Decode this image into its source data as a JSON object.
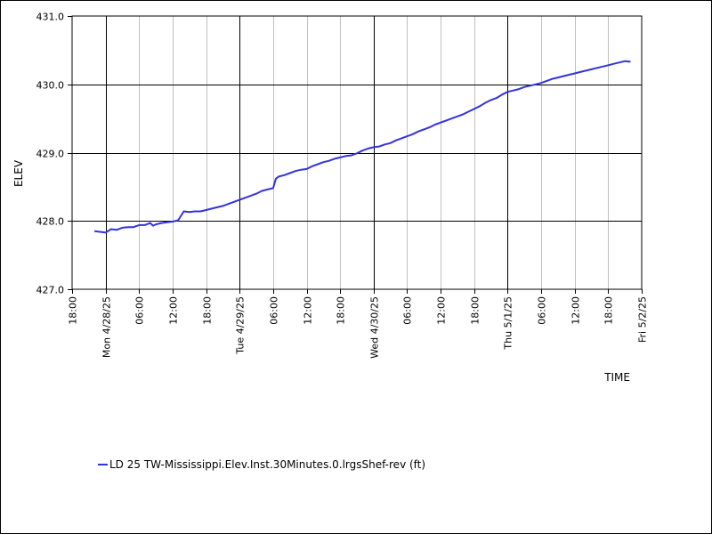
{
  "chart_data": {
    "type": "line",
    "xlabel": "TIME",
    "ylabel": "ELEV",
    "ylim": [
      427.0,
      431.0
    ],
    "yticks": [
      "427.0",
      "428.0",
      "429.0",
      "430.0",
      "431.0"
    ],
    "xlim": [
      "2025-04-27 18:00",
      "2025-05-02 00:00"
    ],
    "xticks": [
      {
        "time": "2025-04-27 18:00",
        "label": "18:00",
        "major": false
      },
      {
        "time": "2025-04-28 00:00",
        "label": "Mon 4/28/25",
        "major": true
      },
      {
        "time": "2025-04-28 06:00",
        "label": "06:00",
        "major": false
      },
      {
        "time": "2025-04-28 12:00",
        "label": "12:00",
        "major": false
      },
      {
        "time": "2025-04-28 18:00",
        "label": "18:00",
        "major": false
      },
      {
        "time": "2025-04-29 00:00",
        "label": "Tue 4/29/25",
        "major": true
      },
      {
        "time": "2025-04-29 06:00",
        "label": "06:00",
        "major": false
      },
      {
        "time": "2025-04-29 12:00",
        "label": "12:00",
        "major": false
      },
      {
        "time": "2025-04-29 18:00",
        "label": "18:00",
        "major": false
      },
      {
        "time": "2025-04-30 00:00",
        "label": "Wed 4/30/25",
        "major": true
      },
      {
        "time": "2025-04-30 06:00",
        "label": "06:00",
        "major": false
      },
      {
        "time": "2025-04-30 12:00",
        "label": "12:00",
        "major": false
      },
      {
        "time": "2025-04-30 18:00",
        "label": "18:00",
        "major": false
      },
      {
        "time": "2025-05-01 00:00",
        "label": "Thu 5/1/25",
        "major": true
      },
      {
        "time": "2025-05-01 06:00",
        "label": "06:00",
        "major": false
      },
      {
        "time": "2025-05-01 12:00",
        "label": "12:00",
        "major": false
      },
      {
        "time": "2025-05-01 18:00",
        "label": "18:00",
        "major": false
      },
      {
        "time": "2025-05-02 00:00",
        "label": "Fri 5/2/25",
        "major": true
      }
    ],
    "grid": true,
    "legend_position": "bottom-left",
    "series": [
      {
        "name": "LD 25 TW-Mississippi.Elev.Inst.30Minutes.0.lrgsShef-rev (ft)",
        "color": "#3333dd",
        "points": [
          [
            "2025-04-27 22:00",
            427.85
          ],
          [
            "2025-04-27 23:00",
            427.84
          ],
          [
            "2025-04-28 00:00",
            427.83
          ],
          [
            "2025-04-28 01:00",
            427.88
          ],
          [
            "2025-04-28 02:00",
            427.87
          ],
          [
            "2025-04-28 03:00",
            427.9
          ],
          [
            "2025-04-28 04:00",
            427.91
          ],
          [
            "2025-04-28 05:00",
            427.91
          ],
          [
            "2025-04-28 06:00",
            427.94
          ],
          [
            "2025-04-28 07:00",
            427.94
          ],
          [
            "2025-04-28 08:00",
            427.97
          ],
          [
            "2025-04-28 08:30",
            427.93
          ],
          [
            "2025-04-28 09:00",
            427.95
          ],
          [
            "2025-04-28 10:00",
            427.97
          ],
          [
            "2025-04-28 11:00",
            427.98
          ],
          [
            "2025-04-28 12:00",
            427.99
          ],
          [
            "2025-04-28 13:00",
            428.01
          ],
          [
            "2025-04-28 14:00",
            428.14
          ],
          [
            "2025-04-28 15:00",
            428.13
          ],
          [
            "2025-04-28 16:00",
            428.14
          ],
          [
            "2025-04-28 17:00",
            428.14
          ],
          [
            "2025-04-28 18:00",
            428.16
          ],
          [
            "2025-04-28 19:00",
            428.18
          ],
          [
            "2025-04-28 20:00",
            428.2
          ],
          [
            "2025-04-28 21:00",
            428.22
          ],
          [
            "2025-04-28 22:00",
            428.25
          ],
          [
            "2025-04-28 23:00",
            428.28
          ],
          [
            "2025-04-29 00:00",
            428.31
          ],
          [
            "2025-04-29 01:00",
            428.34
          ],
          [
            "2025-04-29 02:00",
            428.37
          ],
          [
            "2025-04-29 03:00",
            428.4
          ],
          [
            "2025-04-29 04:00",
            428.44
          ],
          [
            "2025-04-29 05:00",
            428.46
          ],
          [
            "2025-04-29 06:00",
            428.48
          ],
          [
            "2025-04-29 06:30",
            428.62
          ],
          [
            "2025-04-29 07:00",
            428.65
          ],
          [
            "2025-04-29 08:00",
            428.67
          ],
          [
            "2025-04-29 09:00",
            428.7
          ],
          [
            "2025-04-29 10:00",
            428.73
          ],
          [
            "2025-04-29 11:00",
            428.75
          ],
          [
            "2025-04-29 12:00",
            428.76
          ],
          [
            "2025-04-29 13:00",
            428.8
          ],
          [
            "2025-04-29 14:00",
            428.83
          ],
          [
            "2025-04-29 15:00",
            428.86
          ],
          [
            "2025-04-29 16:00",
            428.88
          ],
          [
            "2025-04-29 17:00",
            428.91
          ],
          [
            "2025-04-29 18:00",
            428.93
          ],
          [
            "2025-04-29 19:00",
            428.95
          ],
          [
            "2025-04-29 20:00",
            428.96
          ],
          [
            "2025-04-29 21:00",
            428.99
          ],
          [
            "2025-04-29 22:00",
            429.03
          ],
          [
            "2025-04-29 23:00",
            429.06
          ],
          [
            "2025-04-30 00:00",
            429.08
          ],
          [
            "2025-04-30 01:00",
            429.09
          ],
          [
            "2025-04-30 02:00",
            429.12
          ],
          [
            "2025-04-30 03:00",
            429.14
          ],
          [
            "2025-04-30 04:00",
            429.18
          ],
          [
            "2025-04-30 05:00",
            429.21
          ],
          [
            "2025-04-30 06:00",
            429.24
          ],
          [
            "2025-04-30 07:00",
            429.27
          ],
          [
            "2025-04-30 08:00",
            429.31
          ],
          [
            "2025-04-30 09:00",
            429.34
          ],
          [
            "2025-04-30 10:00",
            429.37
          ],
          [
            "2025-04-30 11:00",
            429.41
          ],
          [
            "2025-04-30 12:00",
            429.44
          ],
          [
            "2025-04-30 13:00",
            429.47
          ],
          [
            "2025-04-30 14:00",
            429.5
          ],
          [
            "2025-04-30 15:00",
            429.53
          ],
          [
            "2025-04-30 16:00",
            429.56
          ],
          [
            "2025-04-30 17:00",
            429.6
          ],
          [
            "2025-04-30 18:00",
            429.64
          ],
          [
            "2025-04-30 19:00",
            429.68
          ],
          [
            "2025-04-30 20:00",
            429.73
          ],
          [
            "2025-04-30 21:00",
            429.77
          ],
          [
            "2025-04-30 22:00",
            429.8
          ],
          [
            "2025-04-30 23:00",
            429.85
          ],
          [
            "2025-05-01 00:00",
            429.89
          ],
          [
            "2025-05-01 01:00",
            429.91
          ],
          [
            "2025-05-01 02:00",
            429.93
          ],
          [
            "2025-05-01 03:00",
            429.96
          ],
          [
            "2025-05-01 04:00",
            429.98
          ],
          [
            "2025-05-01 05:00",
            430.0
          ],
          [
            "2025-05-01 06:00",
            430.02
          ],
          [
            "2025-05-01 07:00",
            430.05
          ],
          [
            "2025-05-01 08:00",
            430.08
          ],
          [
            "2025-05-01 09:00",
            430.1
          ],
          [
            "2025-05-01 10:00",
            430.12
          ],
          [
            "2025-05-01 11:00",
            430.14
          ],
          [
            "2025-05-01 12:00",
            430.16
          ],
          [
            "2025-05-01 13:00",
            430.18
          ],
          [
            "2025-05-01 14:00",
            430.2
          ],
          [
            "2025-05-01 15:00",
            430.22
          ],
          [
            "2025-05-01 16:00",
            430.24
          ],
          [
            "2025-05-01 17:00",
            430.26
          ],
          [
            "2025-05-01 18:00",
            430.28
          ],
          [
            "2025-05-01 19:00",
            430.3
          ],
          [
            "2025-05-01 20:00",
            430.32
          ],
          [
            "2025-05-01 21:00",
            430.34
          ],
          [
            "2025-05-01 22:00",
            430.33
          ]
        ]
      }
    ]
  }
}
